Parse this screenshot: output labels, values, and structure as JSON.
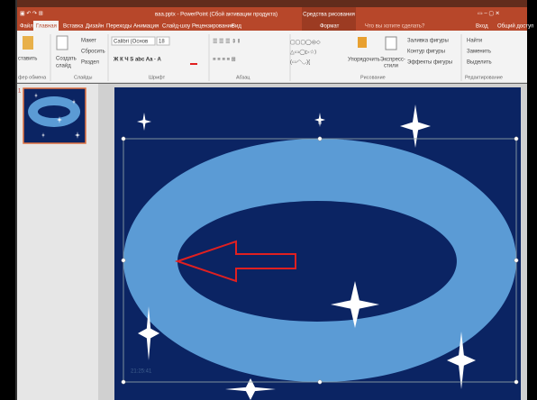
{
  "window": {
    "title": "ваа.pptx - PowerPoint (Сбой активации продукта)",
    "context_group": "Средства рисования"
  },
  "tabs": [
    "Файл",
    "Главная",
    "Вставка",
    "Дизайн",
    "Переходы",
    "Анимация",
    "Слайд-шоу",
    "Рецензирование",
    "Вид",
    "Формат"
  ],
  "search": "Что вы хотите сделать?",
  "account": [
    "Вход",
    "Общий доступ"
  ],
  "ribbon": {
    "buttons": [
      "ставить",
      "Создать",
      "слайд",
      "Макет",
      "Сбросить",
      "Раздел",
      "Calibri (Основ",
      "18",
      "Упорядочить",
      "Экспресс-",
      "стили",
      "Заливка фигуры",
      "Контур фигуры",
      "Эффекты фигуры",
      "Найти",
      "Заменить",
      "Выделить"
    ],
    "groups": [
      "фер обмена",
      "Слайды",
      "Шрифт",
      "Абзац",
      "Рисование",
      "Редактирование"
    ]
  },
  "slide_panel": {
    "number": "1"
  },
  "slide": {
    "timestamp": "21:25:41"
  }
}
